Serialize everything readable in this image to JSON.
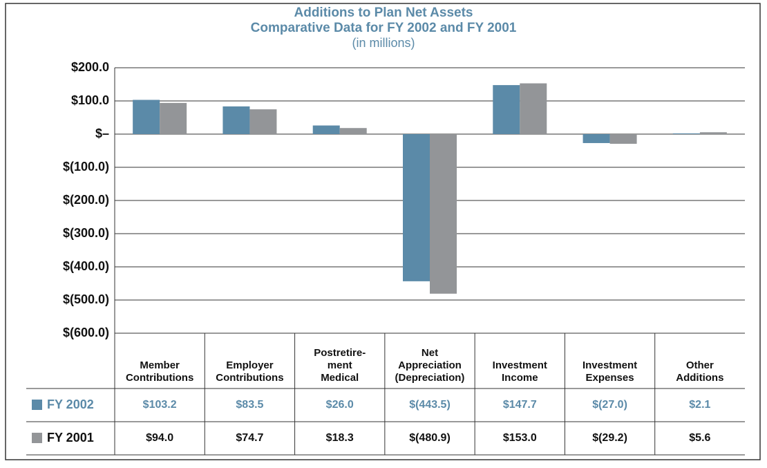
{
  "chart_data": {
    "type": "bar",
    "title": "Additions to Plan Net Assets",
    "subtitle": "Comparative Data for FY 2002 and FY 2001",
    "unit_note": "(in millions)",
    "categories": [
      "Member\nContributions",
      "Employer\nContributions",
      "Postretire-\nment\nMedical",
      "Net\nAppreciation\n(Depreciation)",
      "Investment\nIncome",
      "Investment\nExpenses",
      "Other\nAdditions"
    ],
    "series": [
      {
        "name": "FY 2002",
        "color": "#5b8aa8",
        "values": [
          103.2,
          83.5,
          26.0,
          -443.5,
          147.7,
          -27.0,
          2.1
        ],
        "value_labels": [
          "$103.2",
          "$83.5",
          "$26.0",
          "$(443.5)",
          "$147.7",
          "$(27.0)",
          "$2.1"
        ]
      },
      {
        "name": "FY 2001",
        "color": "#939598",
        "values": [
          94.0,
          74.7,
          18.3,
          -480.9,
          153.0,
          -29.2,
          5.6
        ],
        "value_labels": [
          "$94.0",
          "$74.7",
          "$18.3",
          "$(480.9)",
          "$153.0",
          "$(29.2)",
          "$5.6"
        ]
      }
    ],
    "ylim": [
      -600,
      200
    ],
    "yticks": [
      {
        "value": 200,
        "label": "$200.0"
      },
      {
        "value": 100,
        "label": "$100.0"
      },
      {
        "value": 0,
        "label": "$–"
      },
      {
        "value": -100,
        "label": "$(100.0)"
      },
      {
        "value": -200,
        "label": "$(200.0)"
      },
      {
        "value": -300,
        "label": "$(300.0)"
      },
      {
        "value": -400,
        "label": "$(400.0)"
      },
      {
        "value": -500,
        "label": "$(500.0)"
      },
      {
        "value": -600,
        "label": "$(600.0)"
      }
    ],
    "grid": true
  }
}
